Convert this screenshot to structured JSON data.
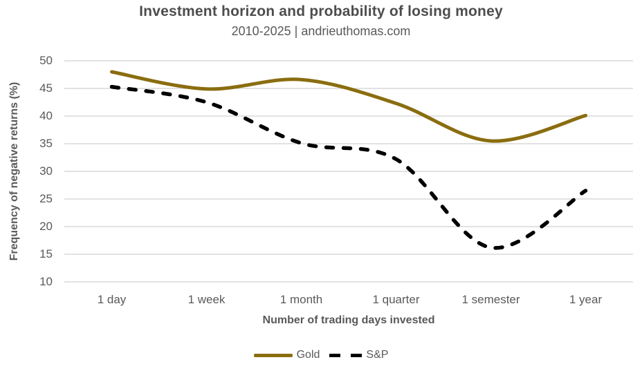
{
  "header": {
    "title": "Investment horizon and probability of losing money",
    "subtitle": "2010-2025 | andrieuthomas.com"
  },
  "chart_data": {
    "type": "line",
    "title": "Investment horizon and probability of losing money",
    "subtitle": "2010-2025 | andrieuthomas.com",
    "categories": [
      "1 day",
      "1 week",
      "1 month",
      "1 quarter",
      "1 semester",
      "1 year"
    ],
    "series": [
      {
        "name": "Gold",
        "values": [
          48,
          44.9,
          46.6,
          42.3,
          35.5,
          40.1
        ],
        "color": "#8a6d0f",
        "style": "solid"
      },
      {
        "name": "S&P",
        "values": [
          45.3,
          42.5,
          35.1,
          32.2,
          16.2,
          26.5
        ],
        "color": "#000000",
        "style": "dashed"
      }
    ],
    "xlabel": "Number of trading days invested",
    "ylabel": "Frequency of negative returns (%)",
    "ylim": [
      10,
      50
    ],
    "ytick_step": 5,
    "yticks": [
      10,
      15,
      20,
      25,
      30,
      35,
      40,
      45,
      50
    ],
    "grid": true,
    "legend_position": "bottom"
  },
  "colors": {
    "gridline": "#d9d9d9",
    "title_text": "#4d4d4d",
    "axis_text": "#595959",
    "background": "#ffffff",
    "gold_series": "#8a6d0f",
    "sp_series": "#000000"
  }
}
